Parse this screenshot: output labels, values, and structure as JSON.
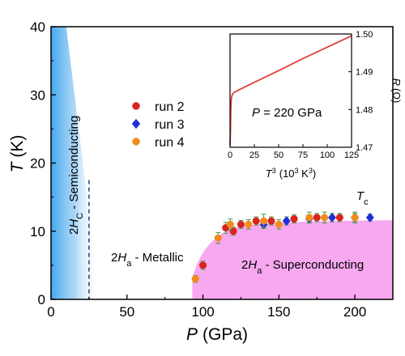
{
  "chart_data": [
    {
      "type": "scatter",
      "xlabel": {
        "symbol": "P",
        "unit": "(GPa)"
      },
      "ylabel": {
        "symbol": "T",
        "unit": "(K)"
      },
      "xlim": [
        0,
        225
      ],
      "ylim": [
        0,
        40
      ],
      "xticks": [
        "0",
        "50",
        "100",
        "150",
        "200"
      ],
      "xtick_values": [
        0,
        50,
        100,
        150,
        200
      ],
      "yticks": [
        "0",
        "10",
        "20",
        "30",
        "40"
      ],
      "ytick_values": [
        0,
        10,
        20,
        30,
        40
      ],
      "tc_label": {
        "base": "T",
        "sub": "c",
        "color": "#e03bd8"
      },
      "regions": {
        "semiconducting": {
          "prefix": "2",
          "italic": "H",
          "sub": "C",
          "suffix": " - Semiconducting",
          "boundary_x": 25
        },
        "metallic": {
          "prefix": "2",
          "italic": "H",
          "sub": "a",
          "suffix": " - Metallic"
        },
        "superconducting": {
          "prefix": "2",
          "italic": "H",
          "sub": "a",
          "suffix": " - Superconducting",
          "color": "#f7a8f0"
        }
      },
      "series": [
        {
          "name": "run 2",
          "color": "#d8231f",
          "marker": "circle",
          "x": [
            100,
            115,
            120,
            125,
            135,
            145,
            160,
            175,
            190
          ],
          "y": [
            5,
            10.5,
            10,
            11,
            11.5,
            11.5,
            11.8,
            12,
            12
          ],
          "err": [
            0.6,
            0.8,
            0.6,
            0.6,
            0.6,
            0.6,
            0.6,
            0.6,
            0.6
          ]
        },
        {
          "name": "run 3",
          "color": "#1f2fd6",
          "marker": "diamond",
          "x": [
            140,
            155,
            170,
            185,
            200,
            210
          ],
          "y": [
            11,
            11.5,
            11.8,
            12,
            12,
            12
          ],
          "err": [
            0.6,
            0.6,
            0.6,
            0.6,
            0.6,
            0.5
          ]
        },
        {
          "name": "run 4",
          "color": "#f08c1e",
          "marker": "circle",
          "x": [
            95,
            110,
            118,
            130,
            140,
            150,
            170,
            180,
            200
          ],
          "y": [
            3,
            9,
            11,
            11,
            11.5,
            11,
            12,
            12,
            12
          ],
          "err": [
            0.5,
            0.8,
            0.8,
            0.7,
            1.0,
            0.7,
            0.8,
            0.8,
            0.8
          ]
        }
      ]
    },
    {
      "type": "line",
      "annotation": {
        "symbol": "P",
        "rest": " = 220 GPa"
      },
      "xlabel": {
        "base": "T",
        "sup": "3",
        "unit_pre": "(10",
        "unit_sup": "3",
        "unit_post": " K",
        "unit_sup2": "3",
        "unit_end": ")"
      },
      "ylabel": {
        "symbol": "R",
        "unit": "(Ω)"
      },
      "xlim": [
        0,
        125
      ],
      "ylim": [
        1.47,
        1.5
      ],
      "xticks": [
        "0",
        "25",
        "50",
        "75",
        "100",
        "125"
      ],
      "xtick_values": [
        0,
        25,
        50,
        75,
        100,
        125
      ],
      "yticks": [
        "1.47",
        "1.48",
        "1.49",
        "1.50"
      ],
      "ytick_values": [
        1.47,
        1.48,
        1.49,
        1.5
      ],
      "series": [
        {
          "color": "#e0403a",
          "x": [
            0,
            0.4,
            0.8,
            1.2,
            1.8,
            2.5,
            4,
            10,
            25,
            50,
            75,
            100,
            125
          ],
          "y": [
            1.4705,
            1.474,
            1.48,
            1.4825,
            1.4835,
            1.484,
            1.4845,
            1.4853,
            1.4872,
            1.4903,
            1.4935,
            1.4965,
            1.4995
          ]
        }
      ]
    }
  ]
}
